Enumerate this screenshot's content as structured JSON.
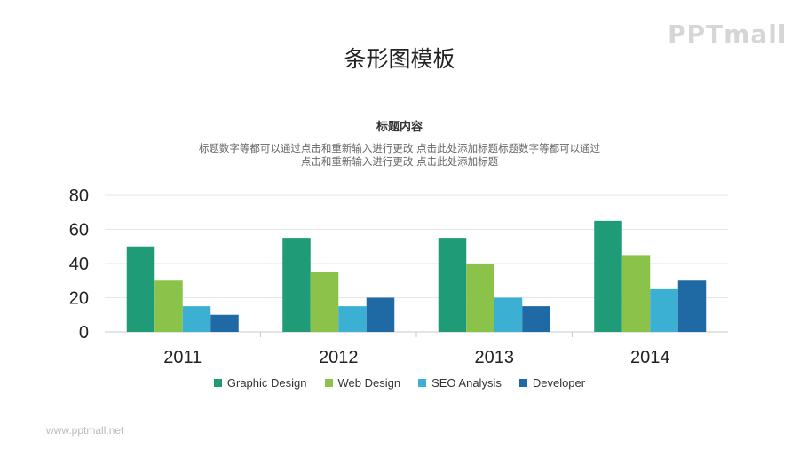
{
  "brand": {
    "logo_text": "PPTmall",
    "footer_url": "www.pptmall.net"
  },
  "header": {
    "title": "条形图模板",
    "subtitle": "标题内容",
    "description_lines": [
      "标题数字等都可以通过点击和重新输入进行更改 点击此处添加标题标题数字等都可以通过",
      "点击和重新输入进行更改 点击此处添加标题"
    ]
  },
  "chart_data": {
    "type": "bar",
    "categories": [
      "2011",
      "2012",
      "2013",
      "2014"
    ],
    "series": [
      {
        "name": "Graphic Design",
        "values": [
          50,
          55,
          55,
          65
        ],
        "color": "#1f9b78"
      },
      {
        "name": "Web Design",
        "values": [
          30,
          35,
          40,
          45
        ],
        "color": "#8bc34a"
      },
      {
        "name": "SEO Analysis",
        "values": [
          15,
          15,
          20,
          25
        ],
        "color": "#3bb0d3"
      },
      {
        "name": "Developer",
        "values": [
          10,
          20,
          15,
          30
        ],
        "color": "#1f6aa5"
      }
    ],
    "y_ticks": [
      0,
      20,
      40,
      60,
      80
    ],
    "ylim": [
      0,
      80
    ],
    "grid": true,
    "legend_position": "bottom"
  }
}
